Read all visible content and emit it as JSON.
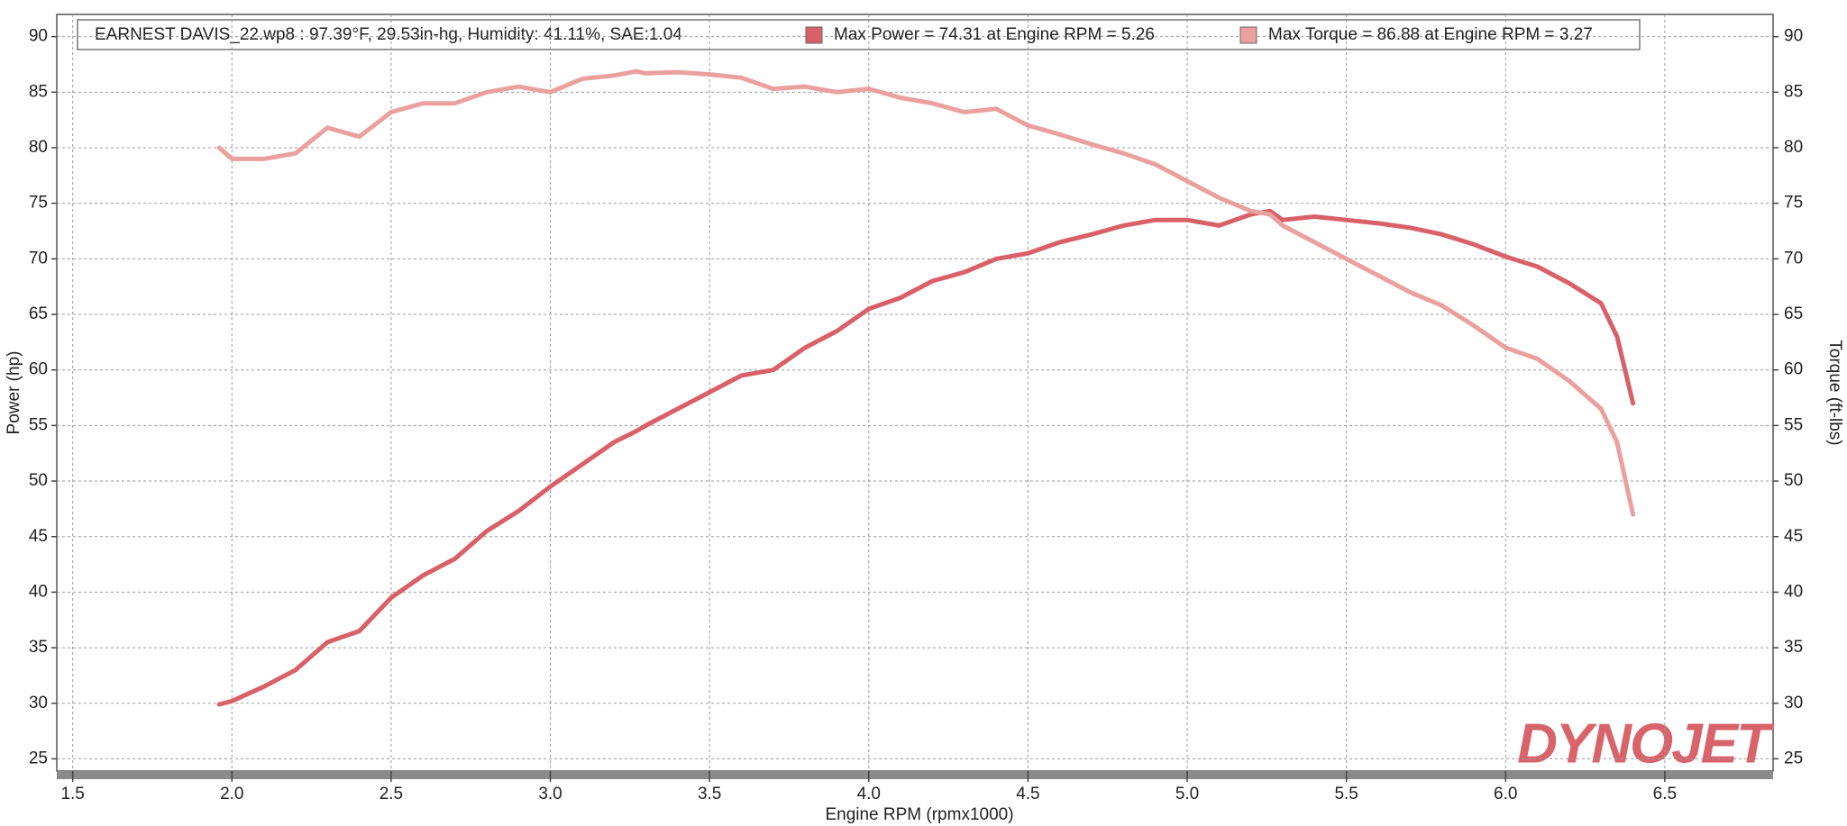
{
  "chart_data": {
    "type": "line",
    "title": "EARNEST DAVIS_22.wp8 : 97.39°F, 29.53in-hg, Humidity: 41.11%, SAE:1.04",
    "logo": "DYNOJET",
    "x_label": "Engine RPM (rpmx1000)",
    "y_label": "Power (hp)",
    "y2_label": "Torque (ft-lbs)",
    "x": [
      1.96,
      2.0,
      2.1,
      2.2,
      2.3,
      2.4,
      2.5,
      2.6,
      2.7,
      2.8,
      2.9,
      3.0,
      3.1,
      3.2,
      3.27,
      3.3,
      3.4,
      3.5,
      3.6,
      3.7,
      3.8,
      3.9,
      4.0,
      4.1,
      4.2,
      4.3,
      4.4,
      4.5,
      4.6,
      4.7,
      4.8,
      4.9,
      5.0,
      5.1,
      5.2,
      5.26,
      5.3,
      5.4,
      5.5,
      5.6,
      5.7,
      5.8,
      5.9,
      6.0,
      6.1,
      6.2,
      6.3,
      6.35,
      6.4
    ],
    "series": [
      {
        "name": "Max Power = 74.31 at Engine RPM = 5.26",
        "color": "#d95f68",
        "values": [
          29.9,
          30.2,
          31.5,
          33,
          35.5,
          36.5,
          39.5,
          41.5,
          43,
          45.5,
          47.3,
          49.5,
          51.5,
          53.5,
          54.5,
          55,
          56.5,
          58,
          59.5,
          60,
          62,
          63.5,
          65.5,
          66.5,
          68,
          68.8,
          70,
          70.5,
          71.5,
          72.2,
          73,
          73.5,
          73.5,
          73,
          74,
          74.3,
          73.5,
          73.8,
          73.5,
          73.2,
          72.8,
          72.2,
          71.3,
          70.2,
          69.3,
          67.8,
          66,
          63,
          57
        ]
      },
      {
        "name": "Max Torque = 86.88 at Engine RPM = 3.27",
        "color": "#eba0a0",
        "axis": "y2",
        "values": [
          80,
          79,
          79,
          79.5,
          81.8,
          81,
          83.2,
          84,
          84,
          85,
          85.5,
          85,
          86.2,
          86.5,
          86.88,
          86.7,
          86.8,
          86.6,
          86.3,
          85.3,
          85.5,
          85,
          85.3,
          84.5,
          84,
          83.2,
          83.5,
          82,
          81.2,
          80.3,
          79.5,
          78.5,
          77,
          75.5,
          74.3,
          74,
          73,
          71.5,
          70,
          68.5,
          67,
          65.8,
          64,
          62,
          61,
          59,
          56.5,
          53.5,
          47
        ]
      }
    ],
    "xlim": [
      1.45,
      6.84
    ],
    "xticks": [
      {
        "value": 1.5,
        "label": "1.5"
      },
      {
        "value": 2.0,
        "label": "2.0"
      },
      {
        "value": 2.5,
        "label": "2.5"
      },
      {
        "value": 3.0,
        "label": "3.0"
      },
      {
        "value": 3.5,
        "label": "3.5"
      },
      {
        "value": 4.0,
        "label": "4.0"
      },
      {
        "value": 4.5,
        "label": "4.5"
      },
      {
        "value": 5.0,
        "label": "5.0"
      },
      {
        "value": 5.5,
        "label": "5.5"
      },
      {
        "value": 6.0,
        "label": "6.0"
      },
      {
        "value": 6.5,
        "label": "6.5"
      }
    ],
    "ylim": [
      23.9,
      92
    ],
    "yticks": [
      25,
      30,
      35,
      40,
      45,
      50,
      55,
      60,
      65,
      70,
      75,
      80,
      85,
      90
    ],
    "y2lim": [
      23.9,
      92
    ],
    "y2ticks": [
      25,
      30,
      35,
      40,
      45,
      50,
      55,
      60,
      65,
      70,
      75,
      80,
      85,
      90
    ],
    "grid": true
  }
}
